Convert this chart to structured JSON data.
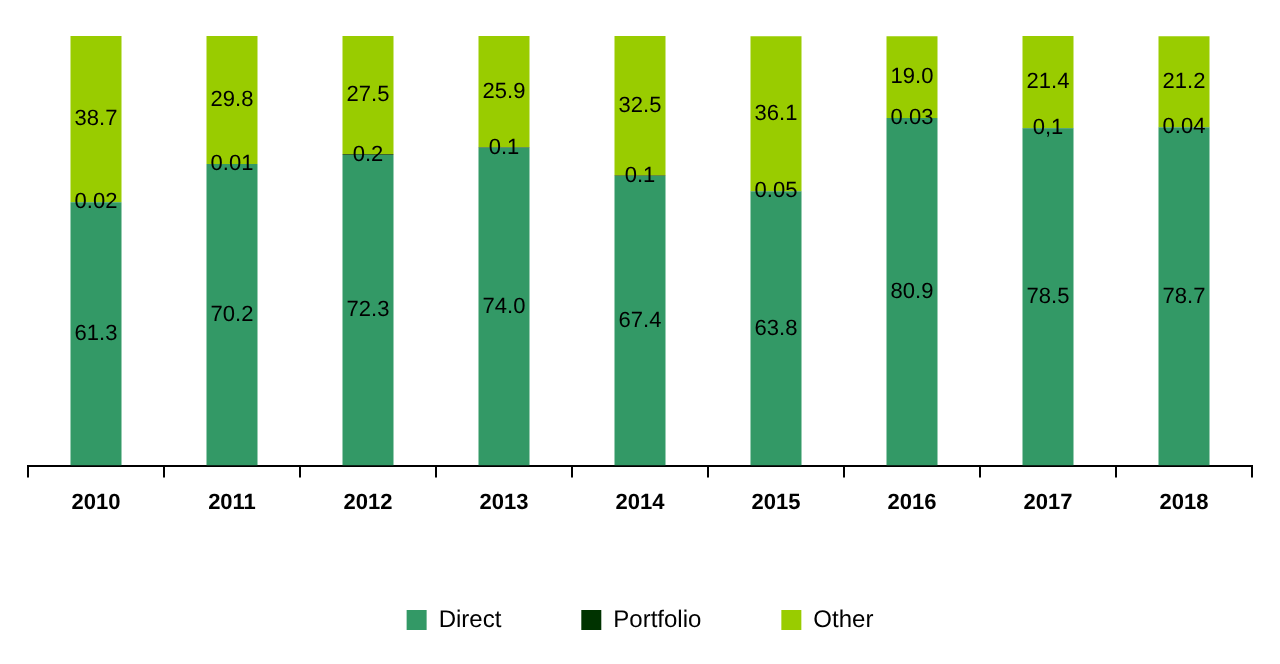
{
  "chart_data": {
    "type": "bar",
    "stacked": true,
    "categories": [
      "2010",
      "2011",
      "2012",
      "2013",
      "2014",
      "2015",
      "2016",
      "2017",
      "2018"
    ],
    "ylim": [
      0,
      100
    ],
    "tick_labels": "x",
    "grid": false,
    "legend": "bottom",
    "series": [
      {
        "name": "Direct",
        "color": "#339966",
        "values": [
          61.3,
          70.2,
          72.3,
          74.0,
          67.4,
          63.8,
          80.9,
          78.5,
          78.7
        ],
        "value_labels": [
          "61.3",
          "70.2",
          "72.3",
          "74.0",
          "67.4",
          "63.8",
          "80.9",
          "78.5",
          "78.7"
        ]
      },
      {
        "name": "Portfolio",
        "color": "#003300",
        "values": [
          0.02,
          0.01,
          0.2,
          0.1,
          0.1,
          0.05,
          0.03,
          0.1,
          0.04
        ],
        "value_labels": [
          "0.02",
          "0.01",
          "0.2",
          "0.1",
          "0.1",
          "0.05",
          "0.03",
          "0,1",
          "0.04"
        ]
      },
      {
        "name": "Other",
        "color": "#99cc00",
        "values": [
          38.7,
          29.8,
          27.5,
          25.9,
          32.5,
          36.1,
          19.0,
          21.4,
          21.2
        ],
        "value_labels": [
          "38.7",
          "29.8",
          "27.5",
          "25.9",
          "32.5",
          "36.1",
          "19.0",
          "21.4",
          "21.2"
        ]
      }
    ]
  }
}
